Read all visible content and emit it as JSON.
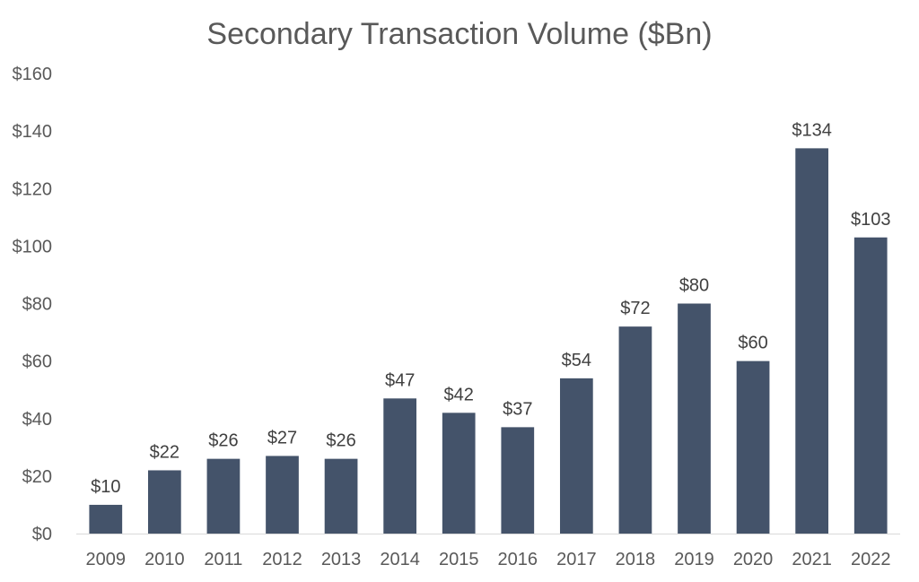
{
  "chart_data": {
    "type": "bar",
    "title": "Secondary Transaction Volume ($Bn)",
    "xlabel": "",
    "ylabel": "",
    "categories": [
      "2009",
      "2010",
      "2011",
      "2012",
      "2013",
      "2014",
      "2015",
      "2016",
      "2017",
      "2018",
      "2019",
      "2020",
      "2021",
      "2022"
    ],
    "values": [
      10,
      22,
      26,
      27,
      26,
      47,
      42,
      37,
      54,
      72,
      80,
      60,
      134,
      103
    ],
    "data_labels": [
      "$10",
      "$22",
      "$26",
      "$27",
      "$26",
      "$47",
      "$42",
      "$37",
      "$54",
      "$72",
      "$80",
      "$60",
      "$134",
      "$103"
    ],
    "ylim": [
      0,
      160
    ],
    "yticks": [
      0,
      20,
      40,
      60,
      80,
      100,
      120,
      140,
      160
    ],
    "ytick_labels": [
      "$0",
      "$20",
      "$40",
      "$60",
      "$80",
      "$100",
      "$120",
      "$140",
      "$160"
    ],
    "grid": false,
    "legend": "none",
    "bar_color": "#44536a"
  }
}
